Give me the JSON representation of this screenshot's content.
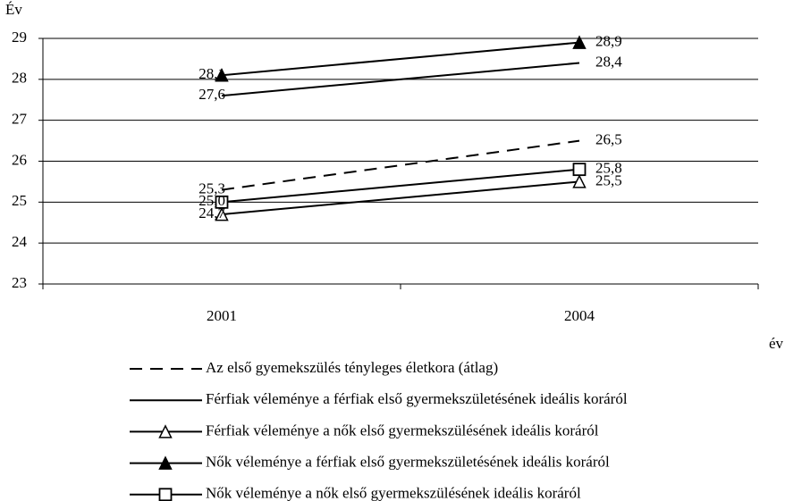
{
  "chart_data": {
    "type": "line",
    "y_label": "Év",
    "x_label": "év",
    "categories": [
      "2001",
      "2004"
    ],
    "ylim": [
      23,
      29
    ],
    "yticks": [
      23,
      24,
      25,
      26,
      27,
      28,
      29
    ],
    "grid": true,
    "series": [
      {
        "name": "Az első gyemekszülés tényleges életkora (átlag)",
        "color": "#000000",
        "dashed": true,
        "marker": "none",
        "values": [
          25.3,
          26.5
        ],
        "value_labels": [
          "25,3",
          "26,5"
        ]
      },
      {
        "name": "Férfiak véleménye a férfiak első gyermekszületésének ideális koráról",
        "color": "#000000",
        "dashed": false,
        "marker": "none",
        "values": [
          27.6,
          28.4
        ],
        "value_labels": [
          "27,6",
          "28,4"
        ]
      },
      {
        "name": "Férfiak véleménye a nők első gyermekszülésének ideális koráról",
        "color": "#000000",
        "dashed": false,
        "marker": "triangle-open",
        "values": [
          24.7,
          25.5
        ],
        "value_labels": [
          "24,7",
          "25,5"
        ]
      },
      {
        "name": "Nők véleménye a férfiak első gyermekszületésének ideális koráról",
        "color": "#000000",
        "dashed": false,
        "marker": "triangle-filled",
        "values": [
          28.1,
          28.9
        ],
        "value_labels": [
          "28,1",
          "28,9"
        ]
      },
      {
        "name": "Nők véleménye a nők első gyermekszülésének ideális koráról",
        "color": "#000000",
        "dashed": false,
        "marker": "square-open",
        "values": [
          25.0,
          25.8
        ],
        "value_labels": [
          "25,0",
          "25,8"
        ]
      }
    ]
  }
}
